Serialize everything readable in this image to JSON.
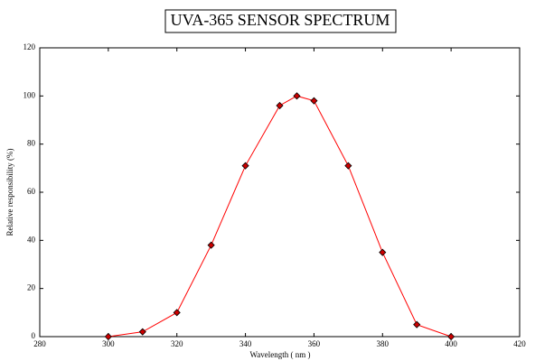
{
  "chart_data": {
    "type": "line",
    "title": "UVA-365 SENSOR SPECTRUM",
    "x_label": "Wavelength ( nm )",
    "y_label": "Relative responsibility (%)",
    "x": [
      300,
      310,
      320,
      330,
      340,
      350,
      355,
      360,
      370,
      380,
      390,
      400
    ],
    "values": [
      0,
      2,
      10,
      38,
      71,
      96,
      100,
      98,
      71,
      35,
      5,
      0
    ],
    "color": "#ff0000",
    "marker_color": "#cc0000",
    "xlim": [
      280,
      420
    ],
    "xticks": [
      280,
      300,
      320,
      340,
      360,
      380,
      400,
      420
    ],
    "ylim": [
      0,
      120
    ],
    "yticks": [
      0,
      20,
      40,
      60,
      80,
      100,
      120
    ]
  }
}
